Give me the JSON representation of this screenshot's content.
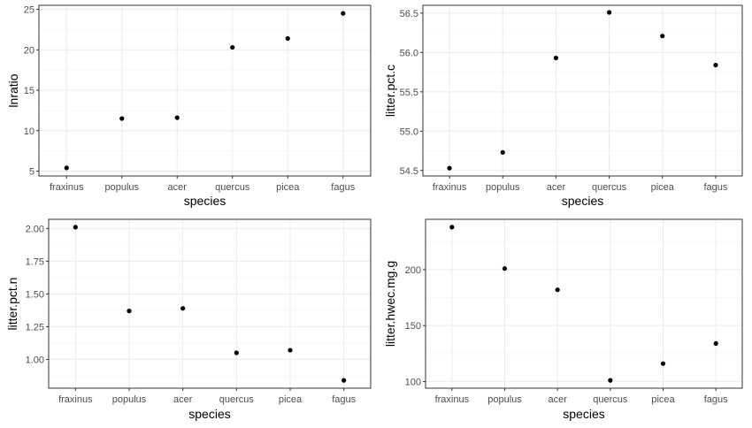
{
  "chart_data": [
    {
      "type": "scatter",
      "xlabel": "species",
      "ylabel": "lnratio",
      "categories": [
        "fraxinus",
        "populus",
        "acer",
        "quercus",
        "picea",
        "fagus"
      ],
      "values": [
        5.4,
        11.5,
        11.6,
        20.3,
        21.4,
        24.5
      ],
      "yticks": [
        5,
        10,
        15,
        20,
        25
      ],
      "ytick_labels": [
        "5",
        "10",
        "15",
        "20",
        "25"
      ],
      "ylim": [
        4.4,
        25.5
      ],
      "grid": true,
      "point_color": "#000000"
    },
    {
      "type": "scatter",
      "xlabel": "species",
      "ylabel": "litter.pct.c",
      "categories": [
        "fraxinus",
        "populus",
        "acer",
        "quercus",
        "picea",
        "fagus"
      ],
      "values": [
        54.53,
        54.73,
        55.93,
        56.51,
        56.21,
        55.84
      ],
      "yticks": [
        54.5,
        55.0,
        55.5,
        56.0,
        56.5
      ],
      "ytick_labels": [
        "54.5",
        "55.0",
        "55.5",
        "56.0",
        "56.5"
      ],
      "ylim": [
        54.43,
        56.6
      ],
      "grid": true,
      "point_color": "#000000"
    },
    {
      "type": "scatter",
      "xlabel": "species",
      "ylabel": "litter.pct.n",
      "categories": [
        "fraxinus",
        "populus",
        "acer",
        "quercus",
        "picea",
        "fagus"
      ],
      "values": [
        2.01,
        1.37,
        1.39,
        1.05,
        1.07,
        0.84
      ],
      "yticks": [
        1.0,
        1.25,
        1.5,
        1.75,
        2.0
      ],
      "ytick_labels": [
        "1.00",
        "1.25",
        "1.50",
        "1.75",
        "2.00"
      ],
      "ylim": [
        0.78,
        2.07
      ],
      "grid": true,
      "point_color": "#000000"
    },
    {
      "type": "scatter",
      "xlabel": "species",
      "ylabel": "litter.hwec.mg.g",
      "categories": [
        "fraxinus",
        "populus",
        "acer",
        "quercus",
        "picea",
        "fagus"
      ],
      "values": [
        238,
        201,
        182,
        101,
        116,
        134
      ],
      "yticks": [
        100,
        150,
        200
      ],
      "ytick_labels": [
        "100",
        "150",
        "200"
      ],
      "ylim": [
        94,
        245
      ],
      "grid": true,
      "point_color": "#000000"
    }
  ]
}
